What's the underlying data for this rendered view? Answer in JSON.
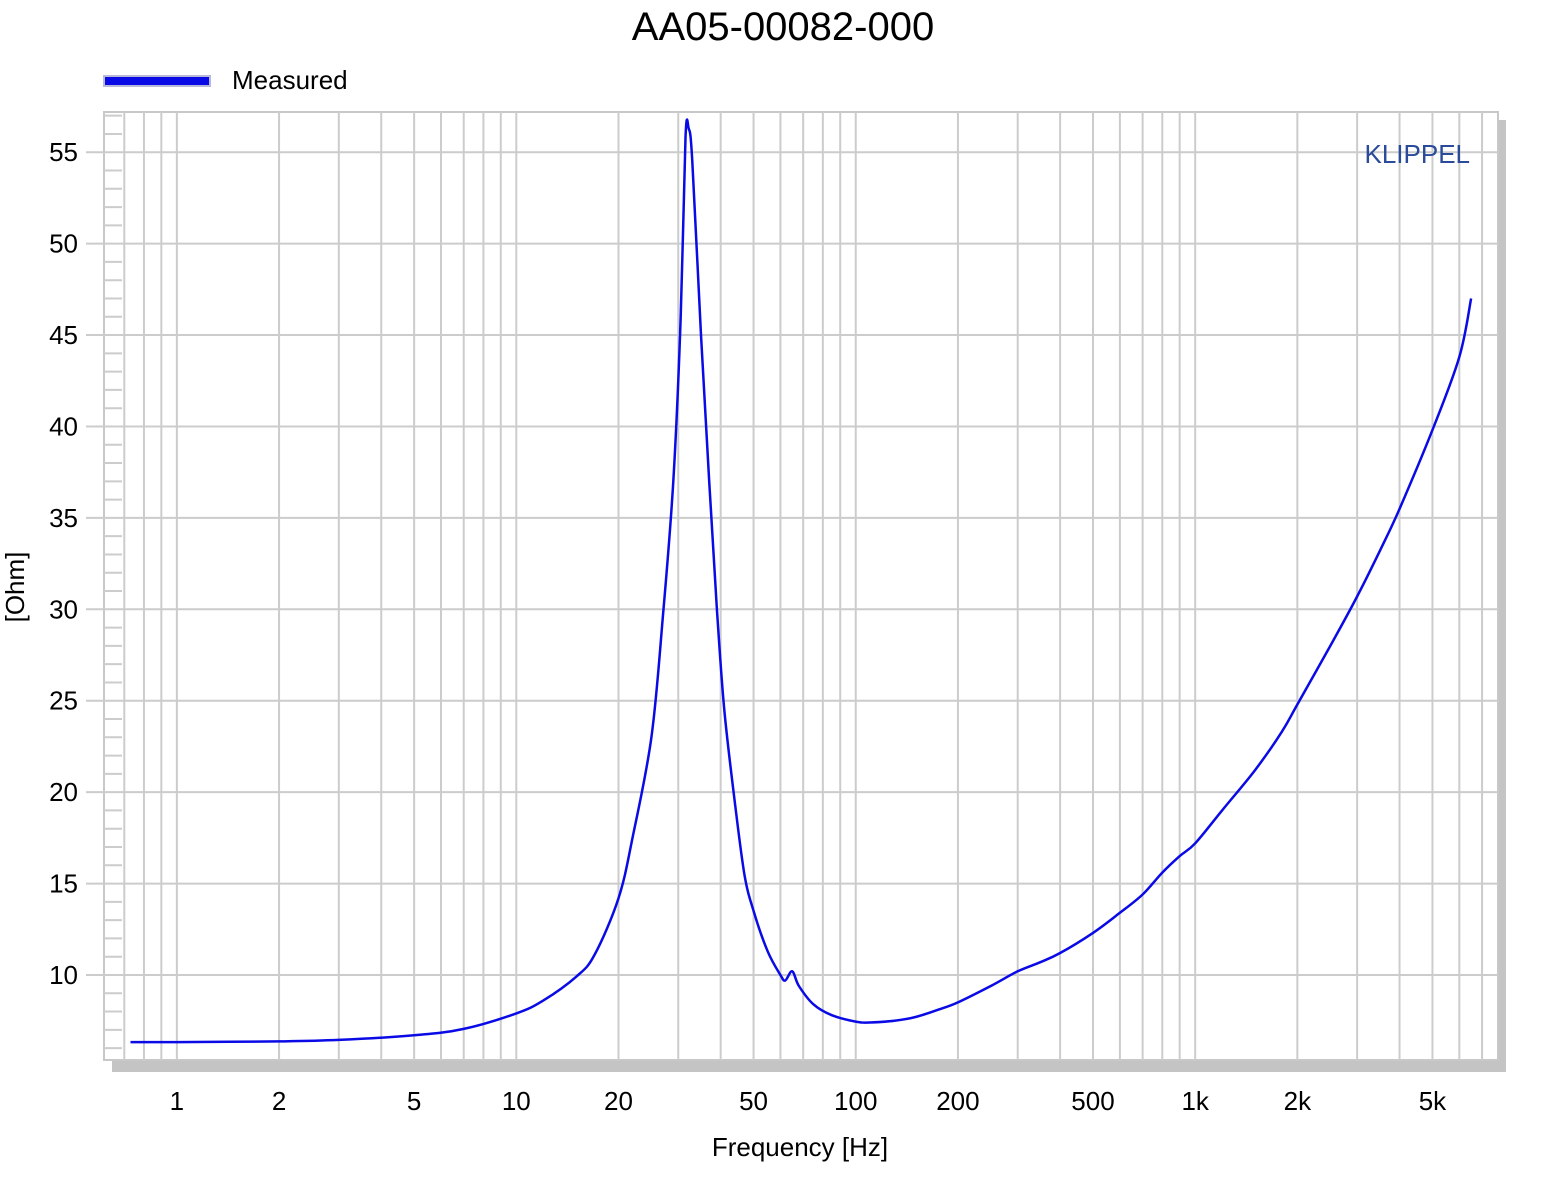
{
  "chart_data": {
    "type": "line",
    "title": "AA05-00082-000",
    "xlabel": "Frequency [Hz]",
    "ylabel": "[Ohm]",
    "xscale": "log",
    "xlim": [
      0.61,
      7800
    ],
    "ylim": [
      5.35,
      57.2
    ],
    "grid": true,
    "legend_position": "top-left",
    "watermark": "KLIPPEL",
    "x_ticks": [
      {
        "value": 1,
        "label": "1"
      },
      {
        "value": 2,
        "label": "2"
      },
      {
        "value": 5,
        "label": "5"
      },
      {
        "value": 10,
        "label": "10"
      },
      {
        "value": 20,
        "label": "20"
      },
      {
        "value": 50,
        "label": "50"
      },
      {
        "value": 100,
        "label": "100"
      },
      {
        "value": 200,
        "label": "200"
      },
      {
        "value": 500,
        "label": "500"
      },
      {
        "value": 1000,
        "label": "1k"
      },
      {
        "value": 2000,
        "label": "2k"
      },
      {
        "value": 5000,
        "label": "5k"
      }
    ],
    "y_ticks": [
      10,
      15,
      20,
      25,
      30,
      35,
      40,
      45,
      50,
      55
    ],
    "series": [
      {
        "name": "Measured",
        "color": "#0a0ae6",
        "x": [
          0.73,
          1,
          2,
          3,
          5,
          7,
          10,
          12,
          15,
          17,
          20,
          22,
          25,
          27,
          29,
          30.5,
          31.5,
          32.2,
          33,
          35,
          37,
          39,
          41,
          44,
          47,
          50,
          55,
          60,
          62,
          65,
          68,
          75,
          85,
          100,
          110,
          130,
          150,
          175,
          200,
          250,
          300,
          350,
          400,
          500,
          600,
          700,
          800,
          900,
          1000,
          1200,
          1500,
          1800,
          2000,
          2500,
          3000,
          3500,
          4000,
          5000,
          6000,
          6500
        ],
        "y": [
          6.33,
          6.33,
          6.37,
          6.45,
          6.7,
          7.05,
          7.9,
          8.6,
          9.9,
          11.1,
          14.2,
          17.5,
          23,
          29.5,
          37,
          46,
          55.8,
          56.3,
          54.5,
          45,
          37,
          30,
          24.5,
          19.5,
          15.5,
          13.5,
          11.3,
          10.0,
          9.7,
          10.2,
          9.4,
          8.4,
          7.8,
          7.45,
          7.4,
          7.5,
          7.7,
          8.1,
          8.5,
          9.4,
          10.2,
          10.7,
          11.2,
          12.3,
          13.4,
          14.4,
          15.6,
          16.5,
          17.2,
          19.0,
          21.2,
          23.3,
          24.8,
          28.0,
          30.7,
          33.2,
          35.5,
          39.8,
          43.8,
          47.0
        ]
      }
    ]
  }
}
